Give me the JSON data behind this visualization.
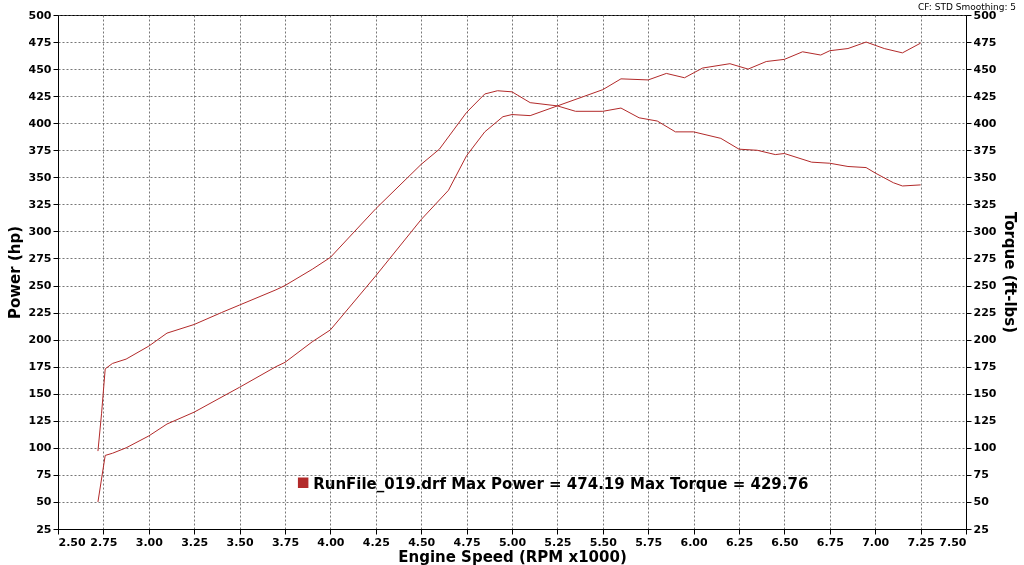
{
  "chart_data": {
    "type": "line",
    "xlabel": "Engine Speed (RPM x1000)",
    "ylabel": "Power (hp)",
    "y2label": "Torque (ft-lbs)",
    "annotations": [
      "CF: STD  Smoothing: 5"
    ],
    "xlim": [
      2.5,
      7.5
    ],
    "xticks": [
      {
        "value": 2.5,
        "label": "2.50"
      },
      {
        "value": 2.75,
        "label": "2.75"
      },
      {
        "value": 3,
        "label": "3.00"
      },
      {
        "value": 3.25,
        "label": "3.25"
      },
      {
        "value": 3.5,
        "label": "3.50"
      },
      {
        "value": 3.75,
        "label": "3.75"
      },
      {
        "value": 4,
        "label": "4.00"
      },
      {
        "value": 4.25,
        "label": "4.25"
      },
      {
        "value": 4.5,
        "label": "4.50"
      },
      {
        "value": 4.75,
        "label": "4.75"
      },
      {
        "value": 5,
        "label": "5.00"
      },
      {
        "value": 5.25,
        "label": "5.25"
      },
      {
        "value": 5.5,
        "label": "5.50"
      },
      {
        "value": 5.75,
        "label": "5.75"
      },
      {
        "value": 6,
        "label": "6.00"
      },
      {
        "value": 6.25,
        "label": "6.25"
      },
      {
        "value": 6.5,
        "label": "6.50"
      },
      {
        "value": 6.75,
        "label": "6.75"
      },
      {
        "value": 7,
        "label": "7.00"
      },
      {
        "value": 7.25,
        "label": "7.25"
      },
      {
        "value": 7.5,
        "label": "7.50"
      }
    ],
    "ylim": [
      25,
      500
    ],
    "yticks": [
      25,
      50,
      75,
      100,
      125,
      150,
      175,
      200,
      225,
      250,
      275,
      300,
      325,
      350,
      375,
      400,
      425,
      450,
      475,
      500
    ],
    "y2lim": [
      25,
      500
    ],
    "y2ticks": [
      25,
      50,
      75,
      100,
      125,
      150,
      175,
      200,
      225,
      250,
      275,
      300,
      325,
      350,
      375,
      400,
      425,
      450,
      475,
      500
    ],
    "grid": true,
    "legend": "bottom",
    "line_style": "solid",
    "series": [
      {
        "name": "RunFile_019.drf Max Power = 474.19     Max Torque = 429.76",
        "color": "#b22a2a",
        "x": [
          2.72,
          2.76,
          2.8,
          2.875,
          3.0,
          3.1,
          3.25,
          3.5,
          3.7,
          3.75,
          3.9,
          4.0,
          4.25,
          4.5,
          4.65,
          4.75,
          4.85,
          4.95,
          5.0,
          5.1,
          5.25,
          5.4,
          5.5,
          5.6,
          5.75,
          5.85,
          5.95,
          6.05,
          6.2,
          6.3,
          6.4,
          6.5,
          6.6,
          6.7,
          6.75,
          6.85,
          6.95,
          7.05,
          7.15,
          7.25
        ],
        "values": [
          50,
          93,
          95,
          100,
          111,
          122,
          133,
          156,
          175,
          179,
          198,
          209,
          259,
          311,
          338,
          370,
          392,
          406,
          408,
          407,
          416,
          425,
          431,
          441,
          440,
          446,
          442,
          451,
          455,
          450,
          457,
          459,
          466,
          463,
          467,
          469,
          475,
          469,
          465,
          474
        ]
      },
      {
        "color": "#b22a2a",
        "axis": "y2",
        "x": [
          2.72,
          2.74,
          2.76,
          2.8,
          2.875,
          3.0,
          3.1,
          3.25,
          3.4,
          3.5,
          3.7,
          3.75,
          3.9,
          4.0,
          4.25,
          4.5,
          4.6,
          4.75,
          4.85,
          4.92,
          5.0,
          5.1,
          5.25,
          5.35,
          5.5,
          5.6,
          5.7,
          5.8,
          5.9,
          6.0,
          6.15,
          6.25,
          6.35,
          6.45,
          6.5,
          6.65,
          6.75,
          6.85,
          6.95,
          7.0,
          7.1,
          7.15,
          7.25
        ],
        "values": [
          97,
          132,
          173,
          178,
          182,
          194,
          206,
          214,
          225,
          232,
          246,
          250,
          265,
          276,
          321,
          362,
          376,
          410,
          427,
          430,
          429,
          419,
          416,
          411,
          411,
          414,
          405,
          402,
          392,
          392,
          386,
          376,
          375,
          371,
          372,
          364,
          363,
          360,
          359,
          354,
          345,
          342,
          343
        ]
      }
    ]
  }
}
